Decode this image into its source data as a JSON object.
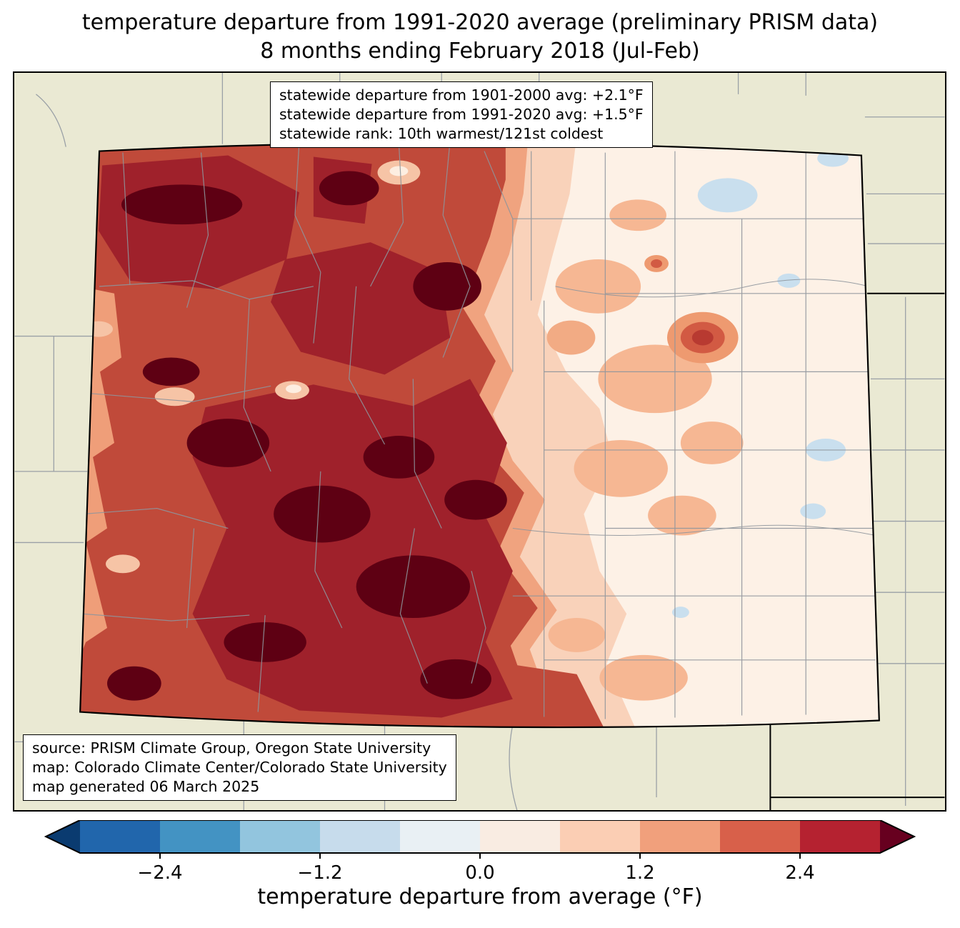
{
  "title": {
    "line1": "temperature departure from 1991-2020 average (preliminary PRISM data)",
    "line2": "8 months ending February 2018 (Jul-Feb)"
  },
  "stats_box": {
    "line1": "statewide departure from 1901-2000 avg: +2.1°F",
    "line2": "statewide departure from 1991-2020 avg: +1.5°F",
    "line3": "statewide rank: 10th warmest/121st coldest"
  },
  "source_box": {
    "line1": "source: PRISM Climate Group, Oregon State University",
    "line2": "map: Colorado Climate Center/Colorado State University",
    "line3": "map generated 06 March 2025"
  },
  "colorbar": {
    "label": "temperature departure from average (°F)",
    "range": [
      -3.0,
      3.0
    ],
    "tick_values": [
      -2.4,
      -1.2,
      0.0,
      1.2,
      2.4
    ],
    "tick_labels": [
      "−2.4",
      "−1.2",
      "0.0",
      "1.2",
      "2.4"
    ],
    "segment_colors": [
      "#2166ac",
      "#4393c3",
      "#92c5de",
      "#c7dcec",
      "#e9f0f4",
      "#f9ece2",
      "#fbceb4",
      "#f1a07c",
      "#d8604a",
      "#b52230"
    ],
    "arrow_left_color": "#0a3b70",
    "arrow_right_color": "#67001f"
  },
  "map": {
    "region": "Colorado",
    "background_color": "#eae9d3",
    "county_line_color": "#8e959c",
    "state_border_color": "#000000",
    "warm_colors": [
      "#c04a3a",
      "#9f212b",
      "#5e0013",
      "#f0a37f",
      "#f9d2ba",
      "#fdf1e6"
    ],
    "cool_color": "#c9dfee"
  }
}
